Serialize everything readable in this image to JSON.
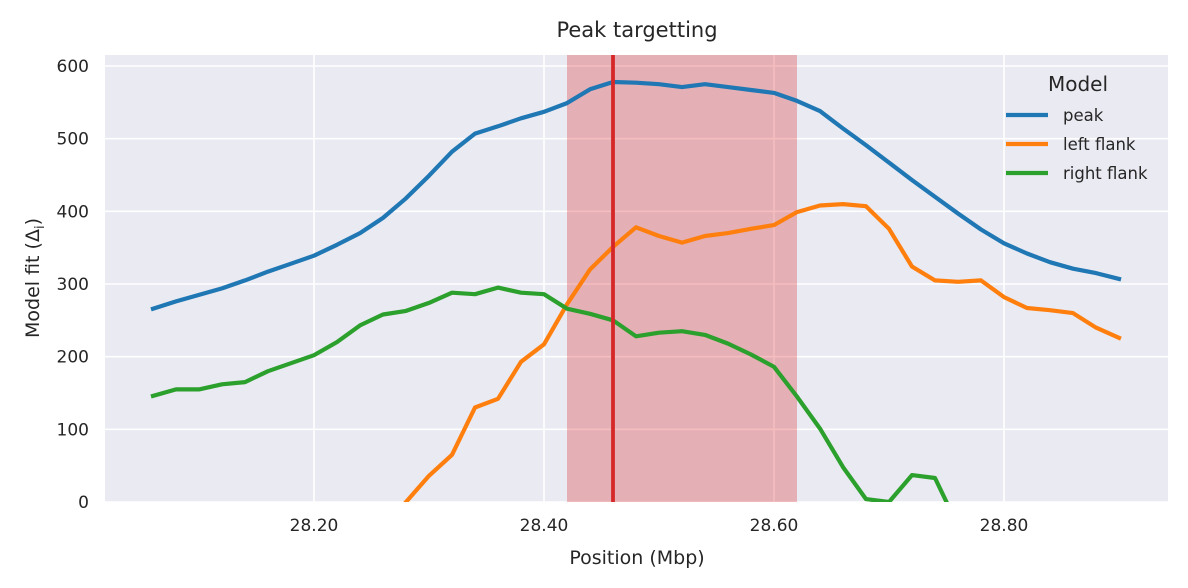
{
  "chart_data": {
    "type": "line",
    "title": "Peak targetting",
    "xlabel": "Position (Mbp)",
    "ylabel": "Model fit (Δ",
    "ylabel_sub": "i",
    "ylabel_close": ")",
    "xlim": [
      28.0,
      29.0
    ],
    "ylim": [
      0,
      600
    ],
    "x_ticks": [
      28.2,
      28.4,
      28.6,
      28.8
    ],
    "x_tick_labels": [
      "28.20",
      "28.40",
      "28.60",
      "28.80"
    ],
    "y_ticks": [
      0,
      100,
      200,
      300,
      400,
      500,
      600
    ],
    "y_tick_labels": [
      "0",
      "100",
      "200",
      "300",
      "400",
      "500",
      "600"
    ],
    "grid": true,
    "background": "#eaeaf2",
    "highlight_region": {
      "x_start": 28.42,
      "x_end": 28.62,
      "color": "#d9282b"
    },
    "vertical_line": {
      "x": 28.46,
      "color": "#d62728"
    },
    "legend": {
      "title": "Model",
      "position": "top-right"
    },
    "series": [
      {
        "name": "peak",
        "color": "#1f77b4",
        "x": [
          28.06,
          28.08,
          28.1,
          28.12,
          28.14,
          28.16,
          28.18,
          28.2,
          28.22,
          28.24,
          28.26,
          28.28,
          28.3,
          28.32,
          28.34,
          28.36,
          28.38,
          28.4,
          28.42,
          28.44,
          28.46,
          28.48,
          28.5,
          28.52,
          28.54,
          28.56,
          28.58,
          28.6,
          28.62,
          28.64,
          28.66,
          28.68,
          28.7,
          28.72,
          28.74,
          28.76,
          28.78,
          28.8,
          28.82,
          28.84,
          28.86,
          28.88,
          28.9
        ],
        "y": [
          266,
          276,
          285,
          294,
          305,
          317,
          328,
          339,
          354,
          370,
          391,
          418,
          449,
          482,
          507,
          517,
          528,
          537,
          549,
          568,
          578,
          577,
          575,
          571,
          575,
          571,
          567,
          563,
          552,
          538,
          514,
          491,
          467,
          443,
          420,
          397,
          375,
          356,
          342,
          330,
          321,
          315,
          307
        ]
      },
      {
        "name": "left flank",
        "color": "#ff7f0e",
        "x": [
          28.28,
          28.3,
          28.32,
          28.34,
          28.36,
          28.38,
          28.4,
          28.42,
          28.44,
          28.46,
          28.48,
          28.5,
          28.52,
          28.54,
          28.56,
          28.58,
          28.6,
          28.62,
          28.64,
          28.66,
          28.68,
          28.7,
          28.72,
          28.74,
          28.76,
          28.78,
          28.8,
          28.82,
          28.84,
          28.86,
          28.88,
          28.9
        ],
        "y": [
          0,
          36,
          65,
          130,
          142,
          193,
          217,
          272,
          320,
          351,
          378,
          366,
          357,
          366,
          370,
          376,
          381,
          399,
          408,
          410,
          407,
          376,
          324,
          305,
          303,
          305,
          282,
          267,
          264,
          260,
          240,
          226
        ]
      },
      {
        "name": "right flank",
        "color": "#2ca02c",
        "x": [
          28.06,
          28.08,
          28.1,
          28.12,
          28.14,
          28.16,
          28.18,
          28.2,
          28.22,
          28.24,
          28.26,
          28.28,
          28.3,
          28.32,
          28.34,
          28.36,
          28.38,
          28.4,
          28.42,
          28.44,
          28.46,
          28.48,
          28.5,
          28.52,
          28.54,
          28.56,
          28.58,
          28.6,
          28.62,
          28.64,
          28.66,
          28.68,
          28.7,
          28.72,
          28.74,
          28.75
        ],
        "y": [
          146,
          155,
          155,
          162,
          165,
          180,
          191,
          202,
          220,
          243,
          258,
          263,
          274,
          288,
          286,
          295,
          288,
          286,
          266,
          259,
          250,
          228,
          233,
          235,
          230,
          218,
          203,
          186,
          145,
          101,
          48,
          4,
          0,
          37,
          33,
          0
        ]
      }
    ]
  }
}
